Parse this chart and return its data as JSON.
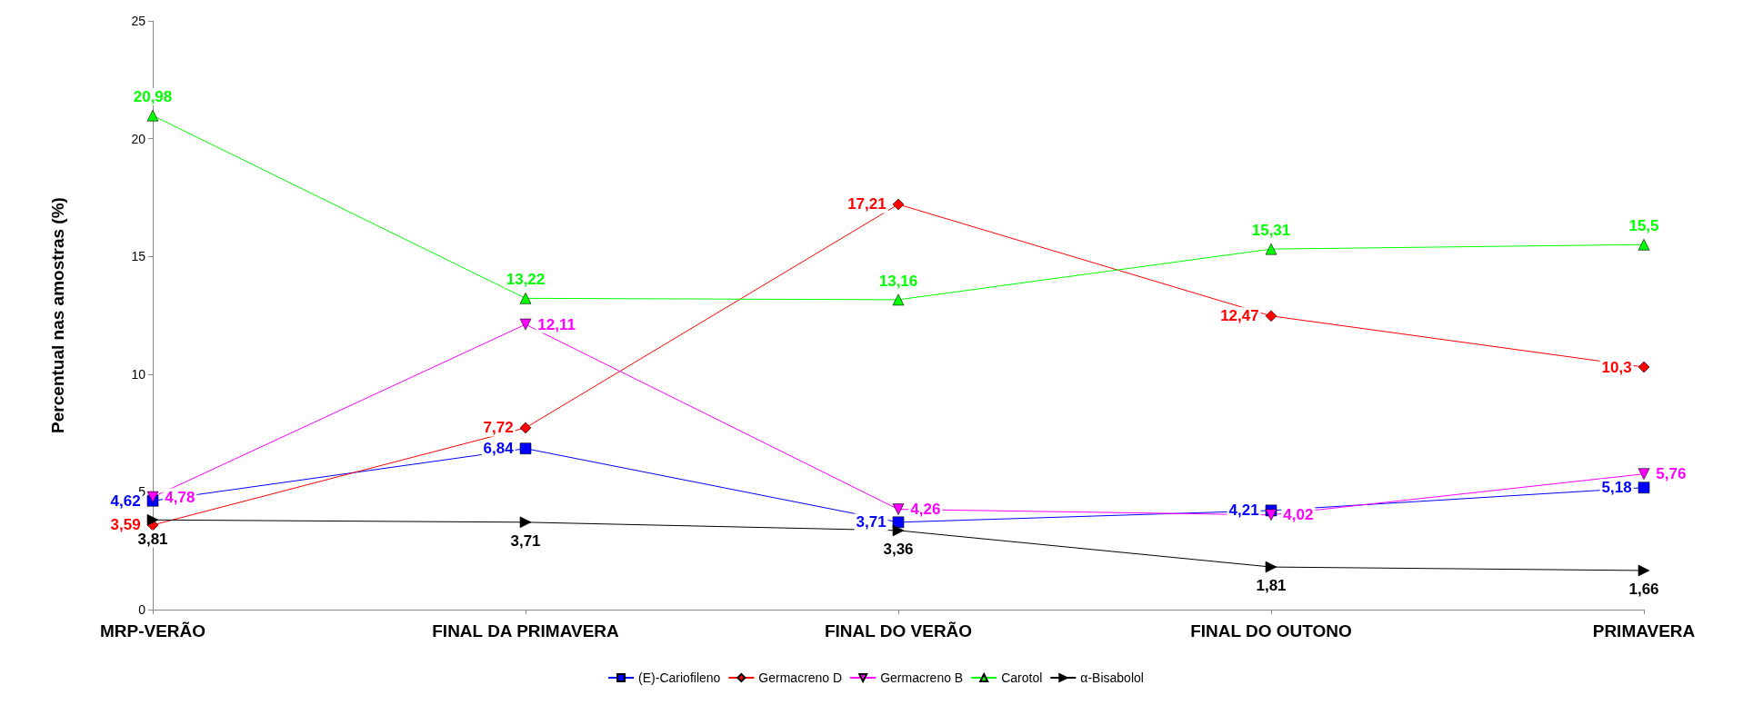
{
  "chart_data": {
    "type": "line",
    "ylabel": "Percentual nas amostras (%)",
    "categories": [
      "MRP-VERÃO",
      "FINAL DA PRIMAVERA",
      "FINAL DO VERÃO",
      "FINAL DO OUTONO",
      "PRIMAVERA"
    ],
    "ylim": [
      0,
      25
    ],
    "yticks": [
      0,
      5,
      10,
      15,
      20,
      25
    ],
    "grid": false,
    "legend": "bottom",
    "series": [
      {
        "name": "(E)-Cariofileno",
        "color": "#0000ff",
        "marker": "square",
        "values": [
          4.62,
          6.84,
          3.71,
          4.21,
          5.18
        ],
        "value_labels": [
          "4,62",
          "6,84",
          "3,71",
          "4,21",
          "5,18"
        ]
      },
      {
        "name": "Germacreno D",
        "color": "#ff0000",
        "marker": "diamond",
        "values": [
          3.59,
          7.72,
          17.21,
          12.47,
          10.3
        ],
        "value_labels": [
          "3,59",
          "7,72",
          "17,21",
          "12,47",
          "10,3"
        ]
      },
      {
        "name": "Germacreno B",
        "color": "#ff00ff",
        "marker": "triangle",
        "values": [
          4.78,
          12.11,
          4.26,
          4.02,
          5.76
        ],
        "value_labels": [
          "4,78",
          "12,11",
          "4,26",
          "4,02",
          "5,76"
        ]
      },
      {
        "name": "Carotol",
        "color": "#00ff00",
        "marker": "triangle",
        "values": [
          20.98,
          13.22,
          13.16,
          15.31,
          15.5
        ],
        "value_labels": [
          "20,98",
          "13,22",
          "13,16",
          "15,31",
          "15,5"
        ]
      },
      {
        "name": "α-Bisabolol",
        "color": "#000000",
        "marker": "triangle",
        "values": [
          3.81,
          3.71,
          3.36,
          1.81,
          1.66
        ],
        "value_labels": [
          "3,81",
          "3,71",
          "3,36",
          "1,81",
          "1,66"
        ]
      }
    ]
  }
}
